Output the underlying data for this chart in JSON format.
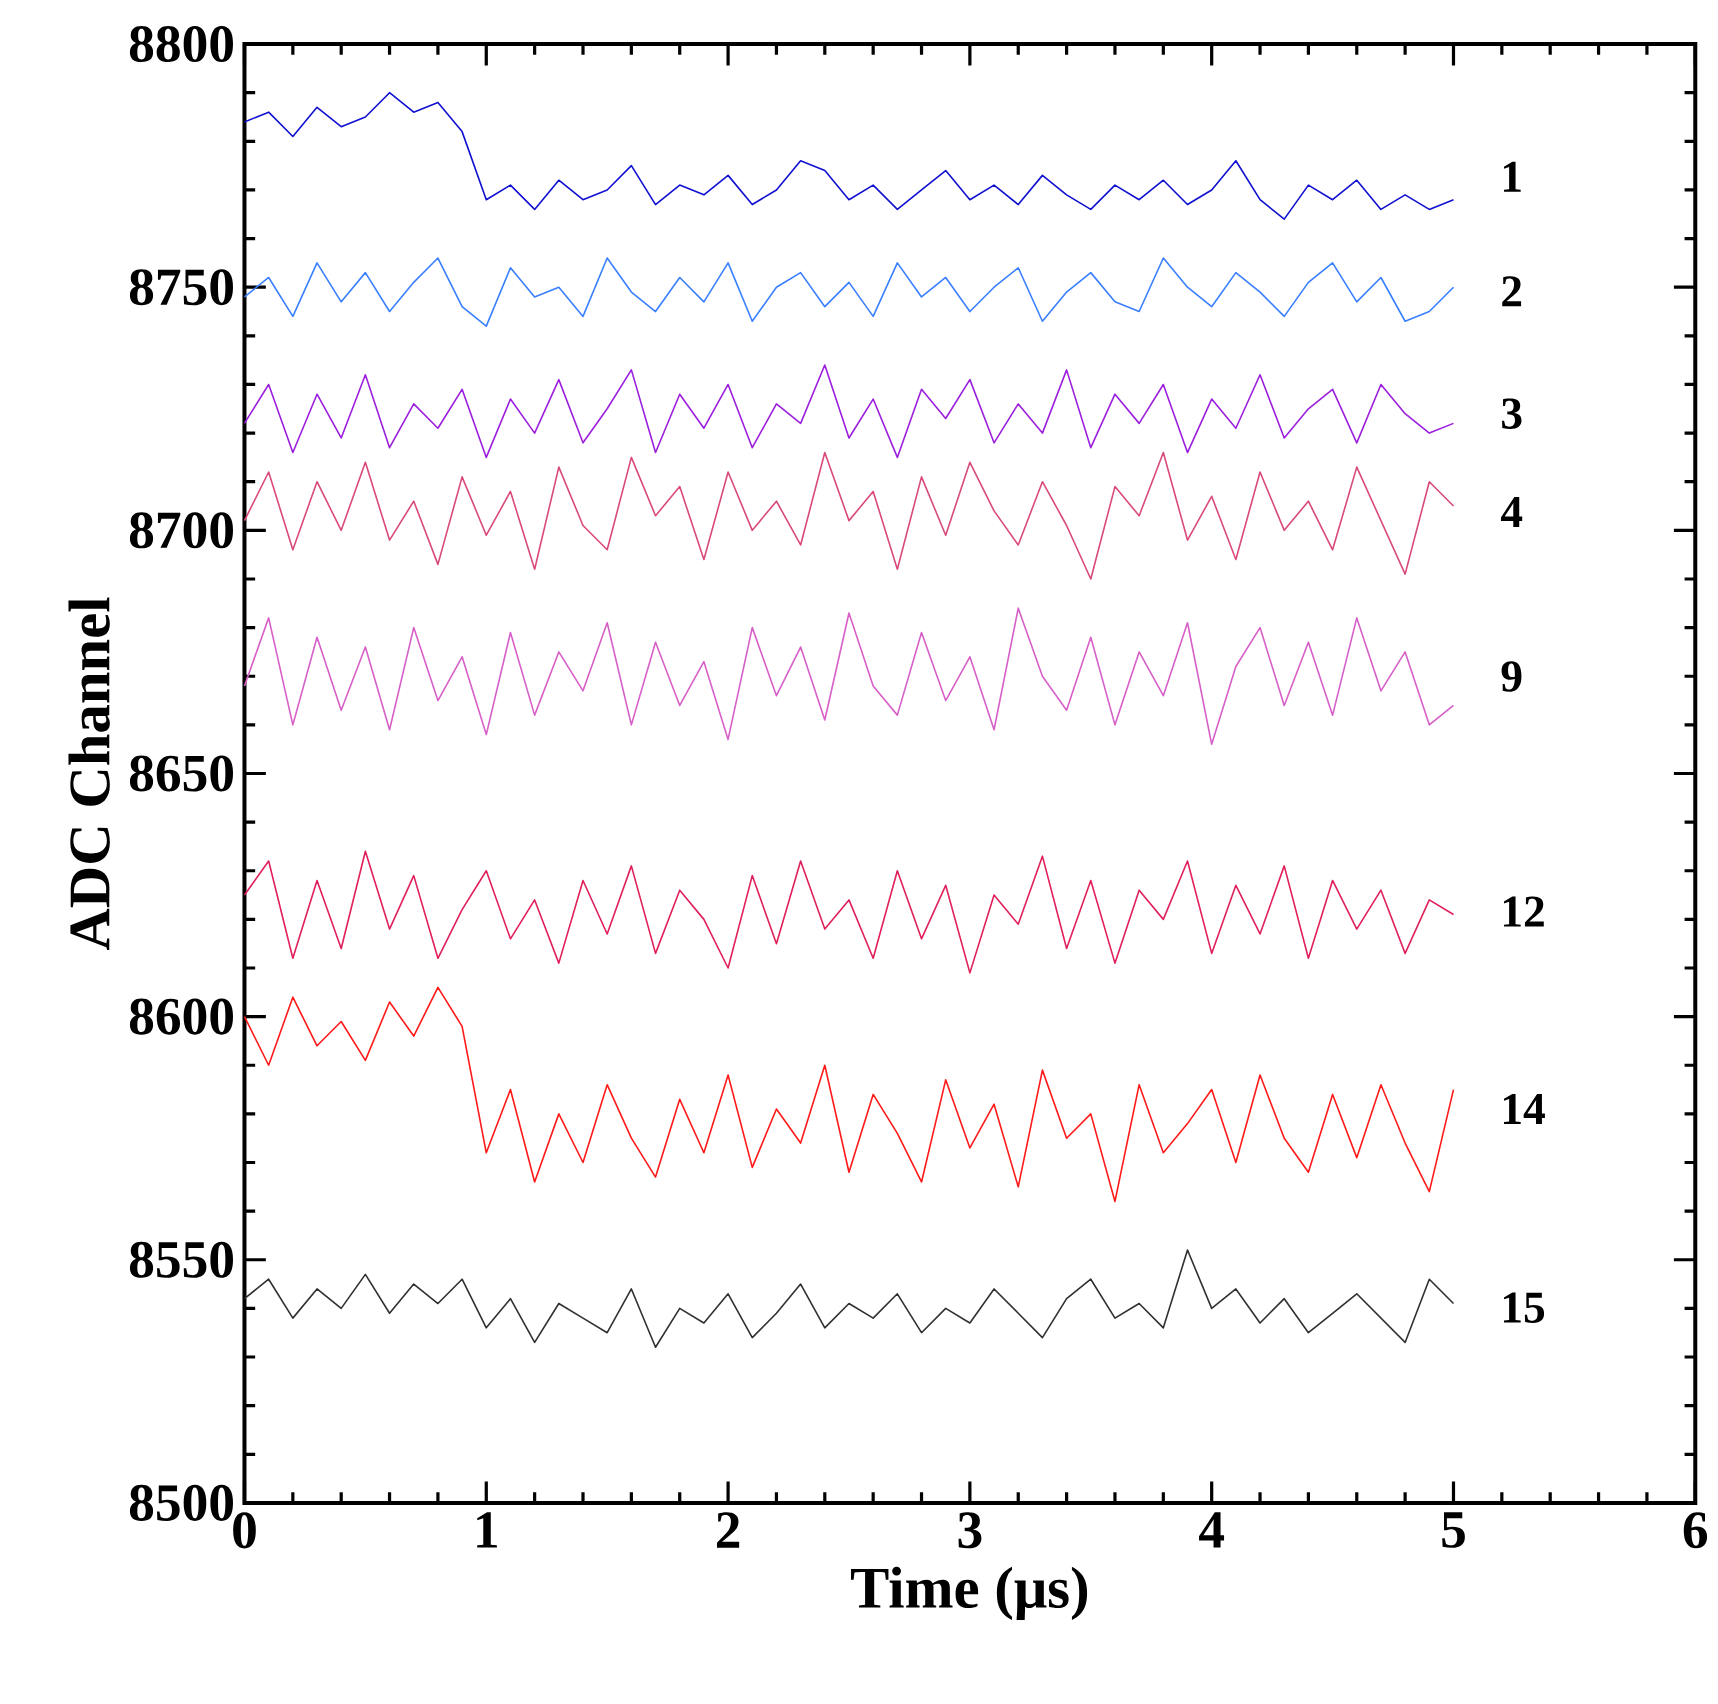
{
  "chart_data": {
    "type": "line",
    "xlabel": "Time (μs)",
    "ylabel": "ADC Channel",
    "xlim": [
      0,
      6
    ],
    "ylim": [
      8500,
      8800
    ],
    "xticks": [
      0,
      1,
      2,
      3,
      4,
      5,
      6
    ],
    "yticks": [
      8500,
      8550,
      8600,
      8650,
      8700,
      8750,
      8800
    ],
    "legend": false,
    "line_style": "solid",
    "x": [
      0,
      0.1,
      0.2,
      0.3,
      0.4,
      0.5,
      0.6,
      0.7,
      0.8,
      0.9,
      1.0,
      1.1,
      1.2,
      1.3,
      1.4,
      1.5,
      1.6,
      1.7,
      1.8,
      1.9,
      2.0,
      2.1,
      2.2,
      2.3,
      2.4,
      2.5,
      2.6,
      2.7,
      2.8,
      2.9,
      3.0,
      3.1,
      3.2,
      3.3,
      3.4,
      3.5,
      3.6,
      3.7,
      3.8,
      3.9,
      4.0,
      4.1,
      4.2,
      4.3,
      4.4,
      4.5,
      4.6,
      4.7,
      4.8,
      4.9,
      5.0
    ],
    "series": [
      {
        "name": "1",
        "color": "#1010d0",
        "values": [
          8784,
          8786,
          8781,
          8787,
          8783,
          8785,
          8790,
          8786,
          8788,
          8782,
          8768,
          8771,
          8766,
          8772,
          8768,
          8770,
          8775,
          8767,
          8771,
          8769,
          8773,
          8767,
          8770,
          8776,
          8774,
          8768,
          8771,
          8766,
          8770,
          8774,
          8768,
          8771,
          8767,
          8773,
          8769,
          8766,
          8771,
          8768,
          8772,
          8767,
          8770,
          8776,
          8768,
          8764,
          8771,
          8768,
          8772,
          8766,
          8769,
          8766,
          8768
        ]
      },
      {
        "name": "2",
        "color": "#3a7fff",
        "values": [
          8748,
          8752,
          8744,
          8755,
          8747,
          8753,
          8745,
          8751,
          8756,
          8746,
          8742,
          8754,
          8748,
          8750,
          8744,
          8756,
          8749,
          8745,
          8752,
          8747,
          8755,
          8743,
          8750,
          8753,
          8746,
          8751,
          8744,
          8755,
          8748,
          8752,
          8745,
          8750,
          8754,
          8743,
          8749,
          8753,
          8747,
          8745,
          8756,
          8750,
          8746,
          8753,
          8749,
          8744,
          8751,
          8755,
          8747,
          8752,
          8743,
          8745,
          8750
        ]
      },
      {
        "name": "3",
        "color": "#9b1fdc",
        "values": [
          8722,
          8730,
          8716,
          8728,
          8719,
          8732,
          8717,
          8726,
          8721,
          8729,
          8715,
          8727,
          8720,
          8731,
          8718,
          8725,
          8733,
          8716,
          8728,
          8721,
          8730,
          8717,
          8726,
          8722,
          8734,
          8719,
          8727,
          8715,
          8729,
          8723,
          8731,
          8718,
          8726,
          8720,
          8733,
          8717,
          8728,
          8722,
          8730,
          8716,
          8727,
          8721,
          8732,
          8719,
          8725,
          8729,
          8718,
          8730,
          8724,
          8720,
          8722
        ]
      },
      {
        "name": "4",
        "color": "#d94a78",
        "values": [
          8702,
          8712,
          8696,
          8710,
          8700,
          8714,
          8698,
          8706,
          8693,
          8711,
          8699,
          8708,
          8692,
          8713,
          8701,
          8696,
          8715,
          8703,
          8709,
          8694,
          8712,
          8700,
          8706,
          8697,
          8716,
          8702,
          8708,
          8692,
          8711,
          8699,
          8714,
          8704,
          8697,
          8710,
          8701,
          8690,
          8709,
          8703,
          8716,
          8698,
          8707,
          8694,
          8712,
          8700,
          8706,
          8696,
          8713,
          8702,
          8691,
          8710,
          8705
        ]
      },
      {
        "name": "9",
        "color": "#d75fc8",
        "values": [
          8668,
          8682,
          8660,
          8678,
          8663,
          8676,
          8659,
          8680,
          8665,
          8674,
          8658,
          8679,
          8662,
          8675,
          8667,
          8681,
          8660,
          8677,
          8664,
          8673,
          8657,
          8680,
          8666,
          8676,
          8661,
          8683,
          8668,
          8662,
          8679,
          8665,
          8674,
          8659,
          8684,
          8670,
          8663,
          8678,
          8660,
          8675,
          8666,
          8681,
          8656,
          8672,
          8680,
          8664,
          8677,
          8662,
          8682,
          8667,
          8675,
          8660,
          8664
        ]
      },
      {
        "name": "12",
        "color": "#e0205a",
        "values": [
          8625,
          8632,
          8612,
          8628,
          8614,
          8634,
          8618,
          8629,
          8612,
          8622,
          8630,
          8616,
          8624,
          8611,
          8628,
          8617,
          8631,
          8613,
          8626,
          8620,
          8610,
          8629,
          8615,
          8632,
          8618,
          8624,
          8612,
          8630,
          8616,
          8627,
          8609,
          8625,
          8619,
          8633,
          8614,
          8628,
          8611,
          8626,
          8620,
          8632,
          8613,
          8627,
          8617,
          8631,
          8612,
          8628,
          8618,
          8626,
          8613,
          8624,
          8621
        ]
      },
      {
        "name": "14",
        "color": "#ff1a1a",
        "values": [
          8600,
          8590,
          8604,
          8594,
          8599,
          8591,
          8603,
          8596,
          8606,
          8598,
          8572,
          8585,
          8566,
          8580,
          8570,
          8586,
          8575,
          8567,
          8583,
          8572,
          8588,
          8569,
          8581,
          8574,
          8590,
          8568,
          8584,
          8576,
          8566,
          8587,
          8573,
          8582,
          8565,
          8589,
          8575,
          8580,
          8562,
          8586,
          8572,
          8578,
          8585,
          8570,
          8588,
          8575,
          8568,
          8584,
          8571,
          8586,
          8574,
          8564,
          8585
        ]
      },
      {
        "name": "15",
        "color": "#303030",
        "values": [
          8542,
          8546,
          8538,
          8544,
          8540,
          8547,
          8539,
          8545,
          8541,
          8546,
          8536,
          8542,
          8533,
          8541,
          8538,
          8535,
          8544,
          8532,
          8540,
          8537,
          8543,
          8534,
          8539,
          8545,
          8536,
          8541,
          8538,
          8543,
          8535,
          8540,
          8537,
          8544,
          8539,
          8534,
          8542,
          8546,
          8538,
          8541,
          8536,
          8552,
          8540,
          8544,
          8537,
          8542,
          8535,
          8539,
          8543,
          8538,
          8533,
          8546,
          8541
        ]
      }
    ]
  }
}
